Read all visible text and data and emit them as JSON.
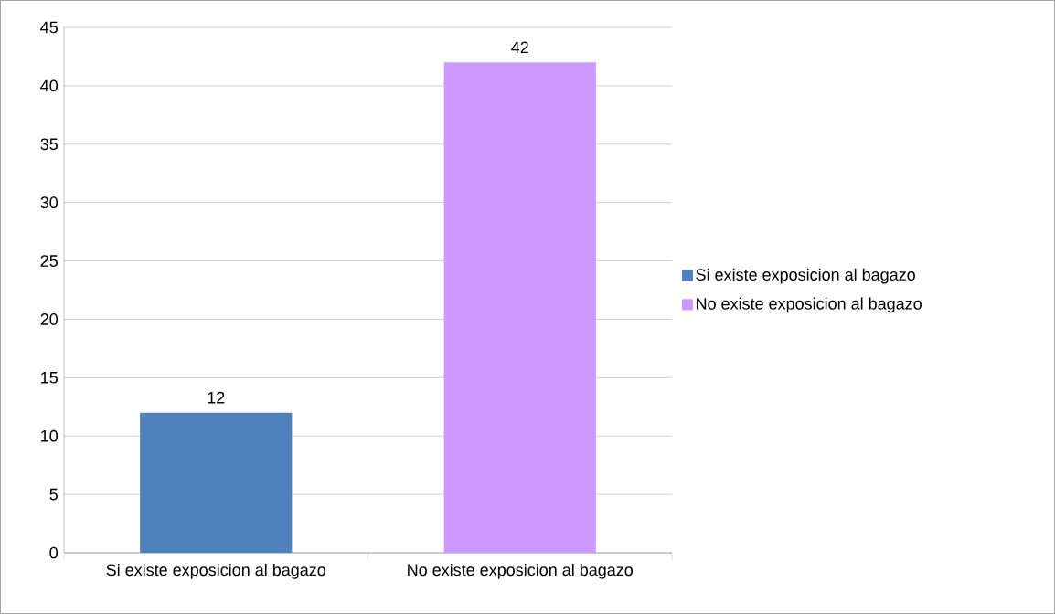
{
  "chart_data": {
    "type": "bar",
    "categories": [
      "Si existe exposicion al bagazo",
      "No existe exposicion al bagazo"
    ],
    "series": [
      {
        "name": "Si existe exposicion al bagazo",
        "color": "#4f81bd",
        "values": [
          12,
          null
        ]
      },
      {
        "name": "No existe exposicion al bagazo",
        "color": "#cc99ff",
        "values": [
          null,
          42
        ]
      }
    ],
    "ylim": [
      0,
      45
    ],
    "yticks": [
      0,
      5,
      10,
      15,
      20,
      25,
      30,
      35,
      40,
      45
    ],
    "grid": "y",
    "legend": "right",
    "data_labels": true
  }
}
